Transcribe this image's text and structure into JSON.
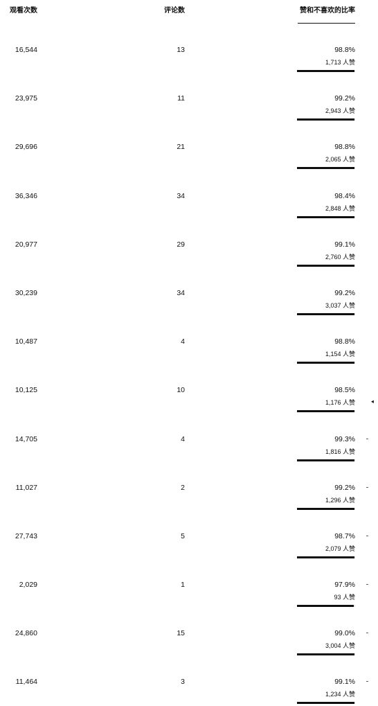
{
  "columns": {
    "views": "观看次数",
    "comments": "评论数",
    "ratio": "赞和不喜欢的比率"
  },
  "rows": [
    {
      "views": "16,544",
      "comments": "13",
      "ratio": "98.8%",
      "likes": "1,713 人赞",
      "like_fraction": 0.988
    },
    {
      "views": "23,975",
      "comments": "11",
      "ratio": "99.2%",
      "likes": "2,943 人赞",
      "like_fraction": 0.992
    },
    {
      "views": "29,696",
      "comments": "21",
      "ratio": "98.8%",
      "likes": "2,065 人赞",
      "like_fraction": 0.988
    },
    {
      "views": "36,346",
      "comments": "34",
      "ratio": "98.4%",
      "likes": "2,848 人赞",
      "like_fraction": 0.984
    },
    {
      "views": "20,977",
      "comments": "29",
      "ratio": "99.1%",
      "likes": "2,760 人赞",
      "like_fraction": 0.991
    },
    {
      "views": "30,239",
      "comments": "34",
      "ratio": "99.2%",
      "likes": "3,037 人赞",
      "like_fraction": 0.992
    },
    {
      "views": "10,487",
      "comments": "4",
      "ratio": "98.8%",
      "likes": "1,154 人赞",
      "like_fraction": 0.988
    },
    {
      "views": "10,125",
      "comments": "10",
      "ratio": "98.5%",
      "likes": "1,176 人赞",
      "like_fraction": 0.985
    },
    {
      "views": "14,705",
      "comments": "4",
      "ratio": "99.3%",
      "likes": "1,816 人赞",
      "like_fraction": 0.993
    },
    {
      "views": "11,027",
      "comments": "2",
      "ratio": "99.2%",
      "likes": "1,296 人赞",
      "like_fraction": 0.992
    },
    {
      "views": "27,743",
      "comments": "5",
      "ratio": "98.7%",
      "likes": "2,079 人赞",
      "like_fraction": 0.987
    },
    {
      "views": "2,029",
      "comments": "1",
      "ratio": "97.9%",
      "likes": "93 人赞",
      "like_fraction": 0.979
    },
    {
      "views": "24,860",
      "comments": "15",
      "ratio": "99.0%",
      "likes": "3,004 人赞",
      "like_fraction": 0.99
    },
    {
      "views": "11,464",
      "comments": "3",
      "ratio": "99.1%",
      "likes": "1,234 人赞",
      "like_fraction": 0.991
    }
  ],
  "colors": {
    "text": "#0f0f0f",
    "bar_fill": "#0f0f0f",
    "bar_track": "#e5e5e5"
  }
}
